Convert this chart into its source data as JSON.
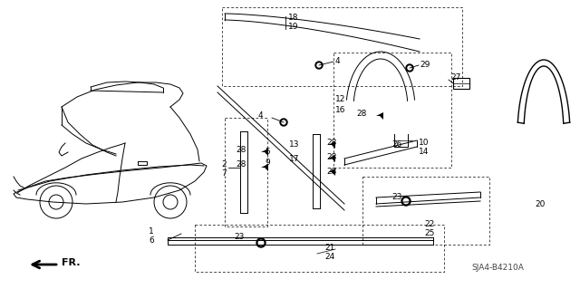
{
  "bg_color": "#ffffff",
  "line_color": "#000000",
  "fig_width": 6.4,
  "fig_height": 3.19,
  "diagram_code": "SJA4-B4210A"
}
